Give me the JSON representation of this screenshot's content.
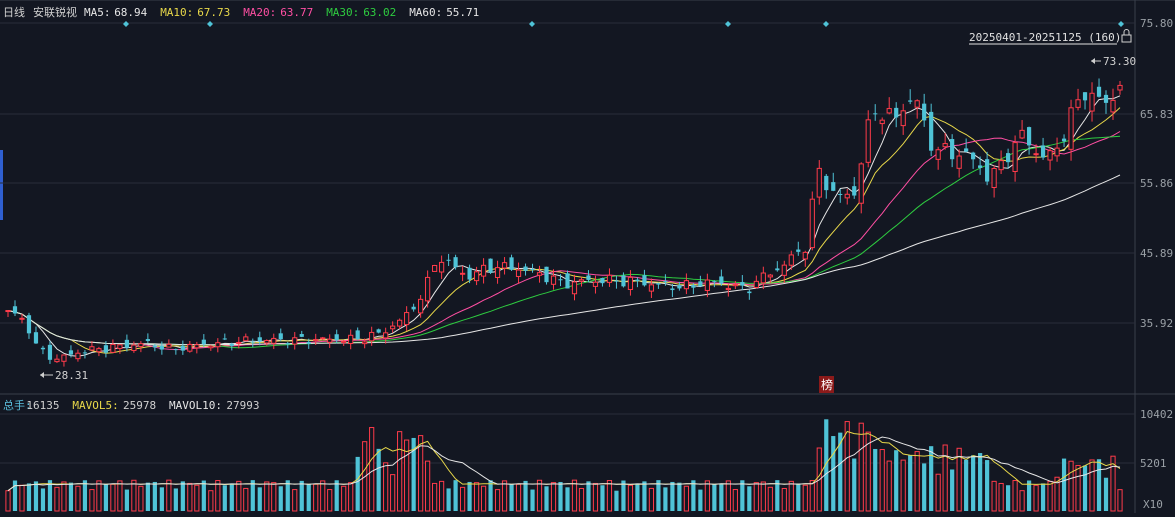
{
  "header": {
    "period": "日线",
    "stock": "安联锐视",
    "ma": [
      {
        "label": "MA5:",
        "value": "68.94",
        "color": "#e6e6e6"
      },
      {
        "label": "MA10:",
        "value": "67.73",
        "color": "#e8d84a"
      },
      {
        "label": "MA20:",
        "value": "63.77",
        "color": "#ff4fa3"
      },
      {
        "label": "MA30:",
        "value": "63.02",
        "color": "#2ecc40"
      },
      {
        "label": "MA60:",
        "value": "55.71",
        "color": "#e6e6e6"
      }
    ]
  },
  "range_label": "20250401-20251125 (160)",
  "price_axis": [
    "75.80",
    "65.83",
    "55.86",
    "45.89",
    "35.92"
  ],
  "high_marker": "73.30",
  "low_marker": "28.31",
  "bang_label": "榜",
  "volume_header": {
    "items": [
      {
        "label": "总手:",
        "value": "16135",
        "color": "#5bc0de"
      },
      {
        "label": "MAVOL5:",
        "value": "25978",
        "color": "#e8d84a"
      },
      {
        "label": "MAVOL10:",
        "value": "27993",
        "color": "#e6e6e6"
      }
    ]
  },
  "volume_axis": [
    "10402",
    "5201",
    "X10"
  ],
  "colors": {
    "up": "#ff3b4a",
    "down": "#4fc3d7",
    "bg": "#131722",
    "grid": "#2a2e39"
  },
  "chart_data": {
    "type": "candlestick",
    "date_range": "20250401-20251125",
    "bars": 160,
    "price_range": [
      25.5,
      78.5
    ],
    "volume_range": [
      0,
      11000
    ],
    "volume_unit": "X10",
    "highest": 73.3,
    "lowest": 28.31,
    "ma_last": {
      "MA5": 68.94,
      "MA10": 67.73,
      "MA20": 63.77,
      "MA30": 63.02,
      "MA60": 55.71
    },
    "last_volume": 16135,
    "mavol_last": {
      "MAVOL5": 25978,
      "MAVOL10": 27993
    }
  }
}
